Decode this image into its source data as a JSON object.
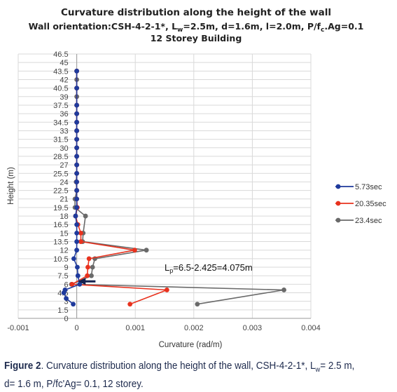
{
  "chart_data": {
    "type": "line",
    "title": "Curvature distribution along the height of the wall",
    "subtitle_parts": [
      "Wall orientation:CSH-4-2-1*, L",
      "w",
      "=2.5m, d=1.6m, l=2.0m, P/f",
      "c",
      ".Ag=0.1"
    ],
    "subtitle2": "12 Storey Building",
    "xlabel": "Curvature (rad/m)",
    "ylabel": "Height (m)",
    "xlim": [
      -0.001,
      0.004
    ],
    "ylim": [
      0,
      46.5
    ],
    "xticks": [
      "-0.001",
      "0",
      "0.001",
      "0.002",
      "0.003",
      "0.004"
    ],
    "yticks": [
      "0",
      "1.5",
      "3",
      "4.5",
      "6",
      "7.5",
      "9",
      "10.5",
      "12",
      "13.5",
      "15",
      "16.5",
      "18",
      "19.5",
      "21",
      "22.5",
      "24",
      "25.5",
      "27",
      "28.5",
      "30",
      "31.5",
      "33",
      "34.5",
      "36",
      "37.5",
      "39",
      "40.5",
      "42",
      "43.5",
      "45",
      "46.5"
    ],
    "grid": true,
    "legend_position": "right",
    "series": [
      {
        "name": "5.73sec",
        "color": "#1f3a9c",
        "x": [
          -6e-05,
          -0.00018,
          -0.00022,
          -0.0002,
          5e-05,
          2e-05,
          1e-05,
          -5e-05,
          0.0,
          0.0,
          0.0,
          0.0,
          -2e-05,
          0.0,
          0.0,
          0.0,
          0.0,
          0.0,
          0.0,
          0.0,
          0.0,
          0.0,
          0.0,
          0.0,
          0.0,
          0.0,
          0.0,
          0.0
        ],
        "y": [
          2.5,
          3.5,
          4.5,
          5.0,
          6.0,
          7.5,
          9.0,
          10.5,
          12.0,
          13.5,
          15.0,
          16.5,
          18.0,
          19.5,
          21.0,
          22.5,
          24.0,
          25.5,
          27.0,
          28.5,
          30.0,
          31.5,
          33.0,
          34.5,
          36.0,
          37.5,
          40.5,
          43.5
        ]
      },
      {
        "name": "20.35sec",
        "color": "#e8321e",
        "x": [
          0.00091,
          0.00154,
          -8e-05,
          0.00018,
          0.00019,
          0.00021,
          0.00099,
          7e-05,
          7e-05,
          2e-05,
          -2e-05,
          1e-05,
          0.0,
          0.0,
          0.0,
          0.0,
          0.0,
          0.0,
          0.0,
          0.0,
          0.0,
          0.0,
          0.0,
          0.0,
          0.0,
          0.0
        ],
        "y": [
          2.5,
          5.0,
          6.0,
          7.5,
          9.0,
          10.5,
          12.0,
          13.5,
          15.0,
          16.5,
          18.0,
          19.5,
          21.0,
          22.5,
          24.0,
          25.5,
          27.0,
          28.5,
          30.0,
          31.5,
          33.0,
          34.5,
          36.0,
          37.5,
          40.5,
          43.5
        ]
      },
      {
        "name": "23.4sec",
        "color": "#6a6a6a",
        "x": [
          0.00206,
          0.00354,
          -9e-05,
          0.00025,
          0.00027,
          0.00031,
          0.00119,
          0.0001,
          0.00011,
          0.00015,
          -3e-05,
          -3e-05,
          0.0,
          -1e-05,
          0.0,
          0.0,
          0.0,
          0.0,
          0.0,
          0.0,
          0.0,
          0.0,
          0.0,
          0.0,
          0.0,
          0.0,
          0.0
        ],
        "y": [
          2.5,
          5.0,
          6.0,
          7.5,
          9.0,
          10.5,
          12.0,
          13.5,
          15.0,
          18.0,
          19.5,
          21.0,
          22.5,
          24.0,
          25.5,
          27.0,
          28.5,
          30.0,
          31.5,
          33.0,
          34.5,
          36.0,
          37.5,
          39.0,
          40.5,
          42.0,
          43.5
        ]
      }
    ],
    "annotation": {
      "text_parts": [
        "L",
        "p",
        "=6.5-2.425=4.075m"
      ],
      "arrow_from": [
        0.00032,
        6.5
      ],
      "arrow_to": [
        2e-05,
        6.5
      ],
      "color": "#15224f"
    }
  },
  "caption": {
    "figure_label": "Figure 2",
    "text_parts": [
      ". Curvature distribution along the height of the wall, CSH-4-2-1*, L",
      "w",
      "= 2.5 m, d= 1.6 m, P/fc'Ag= 0.1, 12 storey."
    ]
  }
}
